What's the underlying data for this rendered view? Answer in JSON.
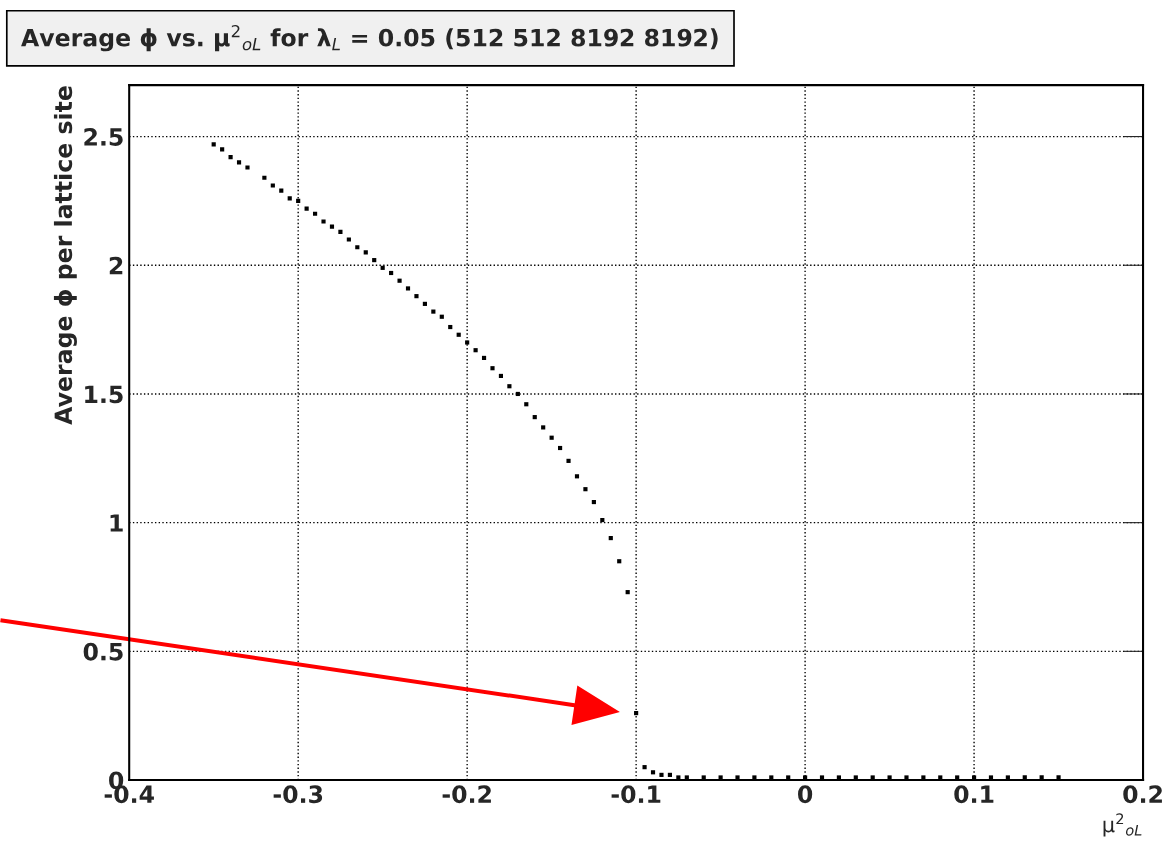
{
  "chart_data": {
    "type": "scatter",
    "title": "Average ϕ vs. μ$^{2}$$_{oL}$ for λ$_{L}$ = 0.05 (512 512 8192 8192)",
    "xlabel": "μ$^{2}$$_{oL}$",
    "ylabel": "Average ϕ per lattice site",
    "x": [
      -0.35,
      -0.345,
      -0.34,
      -0.335,
      -0.33,
      -0.32,
      -0.315,
      -0.31,
      -0.305,
      -0.3,
      -0.295,
      -0.29,
      -0.285,
      -0.28,
      -0.275,
      -0.27,
      -0.265,
      -0.26,
      -0.255,
      -0.25,
      -0.245,
      -0.24,
      -0.235,
      -0.23,
      -0.225,
      -0.22,
      -0.215,
      -0.21,
      -0.205,
      -0.2,
      -0.195,
      -0.19,
      -0.185,
      -0.18,
      -0.175,
      -0.17,
      -0.165,
      -0.16,
      -0.155,
      -0.15,
      -0.145,
      -0.14,
      -0.135,
      -0.13,
      -0.125,
      -0.12,
      -0.115,
      -0.11,
      -0.105,
      -0.1,
      -0.095,
      -0.09,
      -0.085,
      -0.08,
      -0.075,
      -0.07,
      -0.06,
      -0.05,
      -0.04,
      -0.03,
      -0.02,
      -0.01,
      0,
      0.01,
      0.02,
      0.03,
      0.04,
      0.05,
      0.06,
      0.07,
      0.08,
      0.09,
      0.1,
      0.11,
      0.12,
      0.13,
      0.14,
      0.15
    ],
    "values": [
      2.47,
      2.45,
      2.42,
      2.4,
      2.38,
      2.34,
      2.31,
      2.29,
      2.26,
      2.25,
      2.22,
      2.2,
      2.17,
      2.15,
      2.13,
      2.1,
      2.07,
      2.05,
      2.02,
      1.99,
      1.97,
      1.94,
      1.91,
      1.88,
      1.85,
      1.82,
      1.8,
      1.76,
      1.73,
      1.7,
      1.67,
      1.64,
      1.6,
      1.57,
      1.53,
      1.5,
      1.46,
      1.41,
      1.37,
      1.33,
      1.29,
      1.24,
      1.18,
      1.13,
      1.08,
      1.01,
      0.94,
      0.85,
      0.73,
      0.26,
      0.05,
      0.03,
      0.02,
      0.02,
      0.01,
      0.01,
      0.01,
      0.01,
      0.01,
      0.01,
      0.01,
      0.01,
      0.01,
      0.01,
      0.01,
      0.01,
      0.01,
      0.01,
      0.01,
      0.01,
      0.01,
      0.01,
      0.01,
      0.01,
      0.01,
      0.01,
      0.01,
      0.01
    ],
    "color": "#000000",
    "marker": "square",
    "xlim": [
      -0.4,
      0.2
    ],
    "ylim": [
      0,
      2.7
    ],
    "xticks": [
      -0.4,
      -0.3,
      -0.2,
      -0.1,
      0,
      0.1,
      0.2
    ],
    "yticks": [
      0,
      0.5,
      1,
      1.5,
      2,
      2.5
    ],
    "grid": true,
    "line_style": "dotted"
  }
}
